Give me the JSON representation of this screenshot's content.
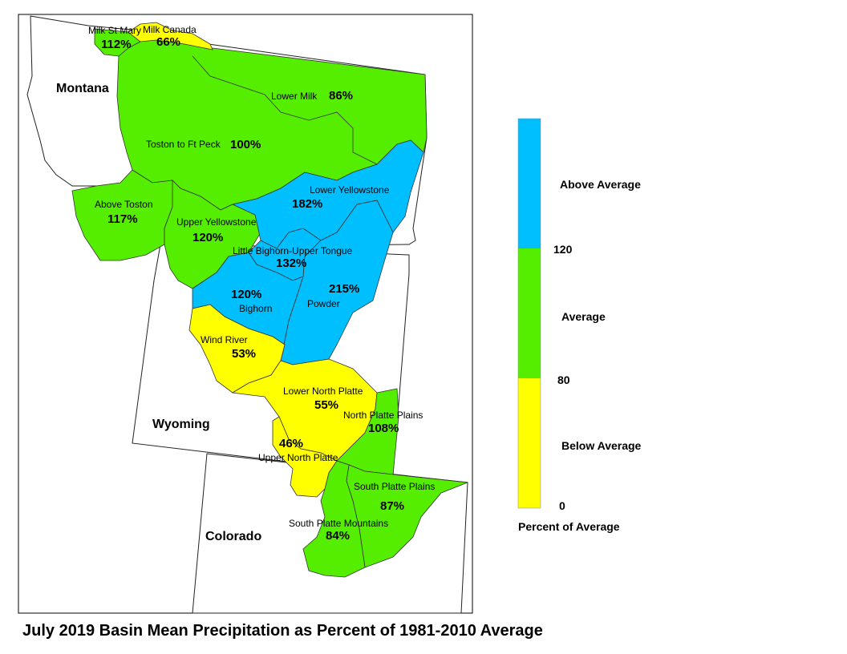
{
  "title": "July 2019 Basin Mean Precipitation as Percent of 1981-2010 Average",
  "colors": {
    "above": "#00bfff",
    "average": "#55ee00",
    "below": "#ffff00"
  },
  "states": {
    "montana": "Montana",
    "wyoming": "Wyoming",
    "colorado": "Colorado"
  },
  "basins": {
    "milk_st_mary": {
      "name": "Milk St Mary",
      "pct": "112%"
    },
    "milk_canada": {
      "name": "Milk Canada",
      "pct": "66%"
    },
    "lower_milk": {
      "name": "Lower Milk",
      "pct": "86%"
    },
    "toston_ft_peck": {
      "name": "Toston to Ft Peck",
      "pct": "100%"
    },
    "above_toston": {
      "name": "Above Toston",
      "pct": "117%"
    },
    "upper_yellowstone": {
      "name": "Upper Yellowstone",
      "pct": "120%"
    },
    "lower_yellowstone": {
      "name": "Lower Yellowstone",
      "pct": "182%"
    },
    "little_bighorn": {
      "name": "Little Bighorn-Upper Tongue",
      "pct": "132%"
    },
    "bighorn": {
      "name": "Bighorn",
      "pct": "120%"
    },
    "powder": {
      "name": "Powder",
      "pct": "215%"
    },
    "wind_river": {
      "name": "Wind River",
      "pct": "53%"
    },
    "lower_north_platte": {
      "name": "Lower North Platte",
      "pct": "55%"
    },
    "north_platte_plains": {
      "name": "North Platte Plains",
      "pct": "108%"
    },
    "upper_north_platte": {
      "name": "Upper North Platte",
      "pct": "46%"
    },
    "south_platte_plains": {
      "name": "South Platte Plains",
      "pct": "87%"
    },
    "south_platte_mountains": {
      "name": "South Platte Mountains",
      "pct": "84%"
    }
  },
  "legend": {
    "above": "Above Average",
    "average": "Average",
    "below": "Below Average",
    "tick_120": "120",
    "tick_80": "80",
    "tick_0": "0",
    "caption": "Percent of Average"
  }
}
